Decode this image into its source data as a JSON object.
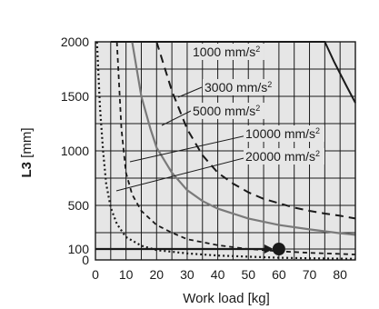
{
  "chart_data": {
    "type": "line",
    "xlabel": "Work load [kg]",
    "ylabel_bold": "L3",
    "ylabel_unit": " [mm]",
    "xlim": [
      0,
      85
    ],
    "ylim": [
      0,
      2000
    ],
    "x_ticks": [
      0,
      10,
      20,
      30,
      40,
      50,
      60,
      70,
      80
    ],
    "y_ticks": [
      0,
      100,
      500,
      1000,
      1500,
      2000
    ],
    "grid": true,
    "background": "#e6e6e6",
    "series": [
      {
        "name": "1000 mm/s²",
        "label_text": "1000 mm/s",
        "label_sup": "2",
        "style": "solid-black",
        "color": "#1a1a1a",
        "points": [
          [
            5,
            2000
          ],
          [
            75,
            2000
          ],
          [
            78,
            1820
          ],
          [
            82,
            1600
          ],
          [
            85,
            1440
          ]
        ]
      },
      {
        "name": "3000 mm/s²",
        "label_text": "3000 mm/s",
        "label_sup": "2",
        "style": "dashed",
        "color": "#1a1a1a",
        "points": [
          [
            20,
            2000
          ],
          [
            25,
            1550
          ],
          [
            30,
            1200
          ],
          [
            35,
            960
          ],
          [
            40,
            800
          ],
          [
            45,
            700
          ],
          [
            50,
            620
          ],
          [
            55,
            560
          ],
          [
            60,
            520
          ],
          [
            65,
            480
          ],
          [
            70,
            450
          ],
          [
            75,
            425
          ],
          [
            80,
            405
          ],
          [
            85,
            380
          ]
        ]
      },
      {
        "name": "5000 mm/s²",
        "label_text": "5000 mm/s",
        "label_sup": "2",
        "style": "solid-gray",
        "color": "#7a7a7a",
        "points": [
          [
            12,
            2000
          ],
          [
            15,
            1500
          ],
          [
            18,
            1200
          ],
          [
            20,
            1030
          ],
          [
            25,
            800
          ],
          [
            30,
            640
          ],
          [
            35,
            540
          ],
          [
            40,
            470
          ],
          [
            50,
            380
          ],
          [
            60,
            320
          ],
          [
            70,
            280
          ],
          [
            80,
            245
          ],
          [
            85,
            230
          ]
        ]
      },
      {
        "name": "10000 mm/s²",
        "label_text": "10000 mm/s",
        "label_sup": "2",
        "style": "dashed-short",
        "color": "#1a1a1a",
        "points": [
          [
            7,
            2000
          ],
          [
            8.5,
            1200
          ],
          [
            10,
            800
          ],
          [
            12,
            600
          ],
          [
            15,
            450
          ],
          [
            20,
            320
          ],
          [
            25,
            250
          ],
          [
            30,
            190
          ],
          [
            40,
            135
          ],
          [
            50,
            100
          ],
          [
            60,
            80
          ],
          [
            70,
            65
          ],
          [
            80,
            55
          ],
          [
            85,
            50
          ]
        ]
      },
      {
        "name": "20000 mm/s²",
        "label_text": "20000 mm/s",
        "label_sup": "2",
        "style": "dotted",
        "color": "#1a1a1a",
        "points": [
          [
            0.5,
            2000
          ],
          [
            1.5,
            1400
          ],
          [
            2.5,
            1000
          ],
          [
            3.5,
            700
          ],
          [
            5,
            480
          ],
          [
            7,
            330
          ],
          [
            10,
            210
          ],
          [
            15,
            130
          ],
          [
            20,
            90
          ],
          [
            30,
            60
          ],
          [
            40,
            40
          ],
          [
            50,
            30
          ],
          [
            60,
            20
          ],
          [
            70,
            15
          ],
          [
            85,
            10
          ]
        ]
      }
    ],
    "annotation": {
      "arrow_from": [
        0,
        100
      ],
      "arrow_to": [
        60,
        100
      ],
      "marker": [
        60,
        100
      ]
    }
  }
}
